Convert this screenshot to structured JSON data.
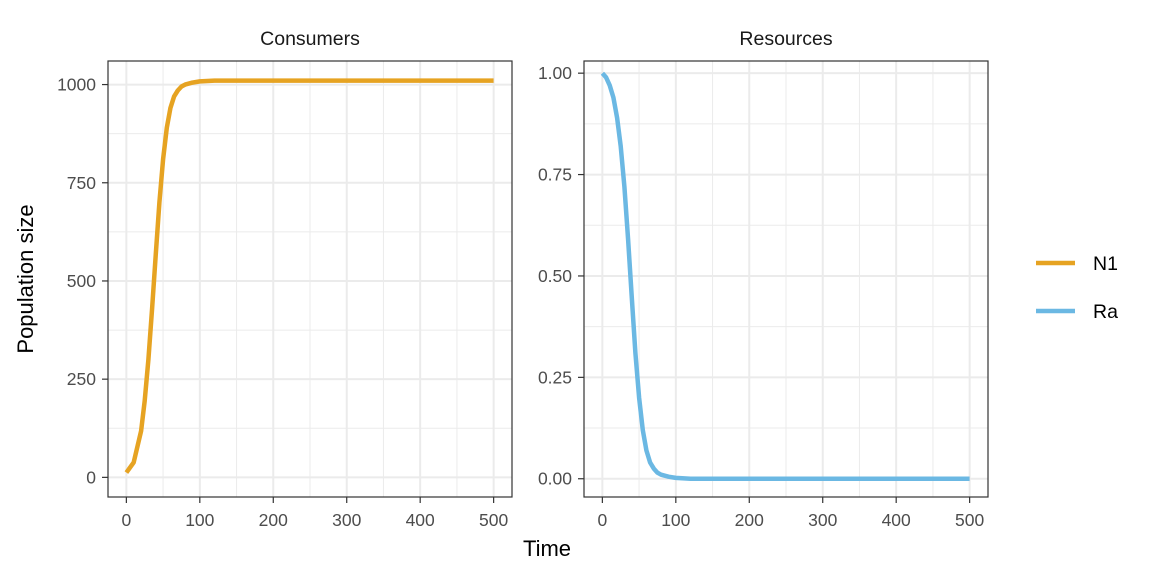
{
  "chart_data": {
    "type": "line",
    "xlabel": "Time",
    "ylabel": "Population size",
    "legend_position": "right",
    "panels": [
      {
        "title": "Consumers",
        "xlim": [
          -25,
          525
        ],
        "ylim": [
          -50,
          1060
        ],
        "xticks": [
          0,
          100,
          200,
          300,
          400,
          500
        ],
        "xtick_labels": [
          "0",
          "100",
          "200",
          "300",
          "400",
          "500"
        ],
        "yticks": [
          0,
          250,
          500,
          750,
          1000
        ],
        "ytick_labels": [
          "0",
          "250",
          "500",
          "750",
          "1000"
        ],
        "grid": true,
        "series": [
          {
            "name": "N1",
            "color": "#E6A322",
            "x": [
              0,
              10,
              20,
              25,
              30,
              35,
              40,
              45,
              50,
              55,
              60,
              65,
              70,
              75,
              80,
              90,
              100,
              120,
              150,
              200,
              300,
              400,
              500
            ],
            "y": [
              12,
              38,
              118,
              195,
              300,
              430,
              565,
              700,
              810,
              890,
              940,
              970,
              985,
              995,
              1000,
              1005,
              1008,
              1010,
              1010,
              1010,
              1010,
              1010,
              1010
            ]
          }
        ]
      },
      {
        "title": "Resources",
        "xlim": [
          -25,
          525
        ],
        "ylim": [
          -0.045,
          1.03
        ],
        "xticks": [
          0,
          100,
          200,
          300,
          400,
          500
        ],
        "xtick_labels": [
          "0",
          "100",
          "200",
          "300",
          "400",
          "500"
        ],
        "yticks": [
          0,
          0.25,
          0.5,
          0.75,
          1.0
        ],
        "ytick_labels": [
          "0.00",
          "0.25",
          "0.50",
          "0.75",
          "1.00"
        ],
        "grid": true,
        "series": [
          {
            "name": "Ra",
            "color": "#6BB8E3",
            "x": [
              0,
              5,
              10,
              15,
              20,
              25,
              30,
              35,
              40,
              45,
              50,
              55,
              60,
              65,
              70,
              75,
              80,
              90,
              100,
              120,
              150,
              200,
              300,
              400,
              500
            ],
            "y": [
              1.0,
              0.99,
              0.97,
              0.94,
              0.89,
              0.82,
              0.72,
              0.59,
              0.45,
              0.31,
              0.2,
              0.12,
              0.07,
              0.04,
              0.025,
              0.015,
              0.01,
              0.005,
              0.002,
              0.0,
              0.0,
              0.0,
              0.0,
              0.0,
              0.0
            ]
          }
        ]
      }
    ]
  }
}
